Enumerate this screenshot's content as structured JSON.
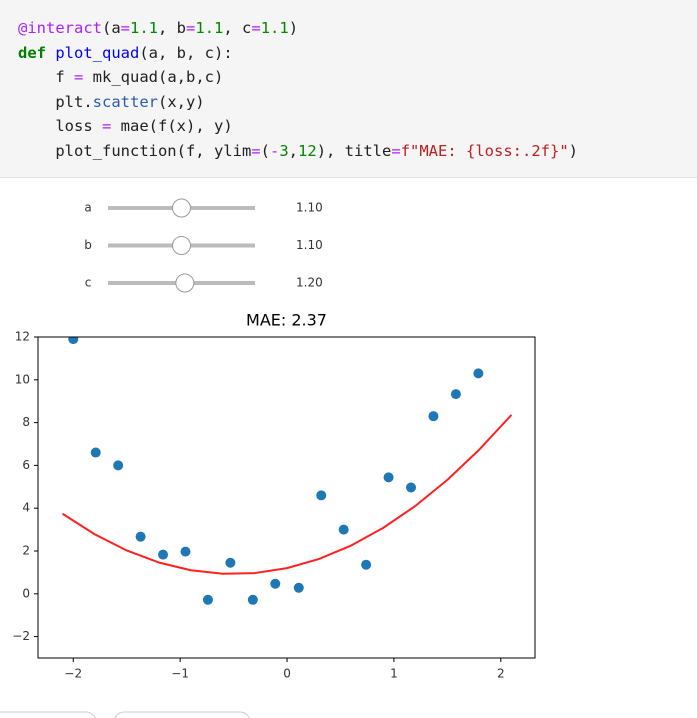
{
  "code": {
    "lines": [
      [
        {
          "t": "@interact",
          "c": "#aa22ff"
        },
        {
          "t": "(a",
          "c": "#212121"
        },
        {
          "t": "=",
          "c": "#aa22ff"
        },
        {
          "t": "1.1",
          "c": "#008800"
        },
        {
          "t": ", b",
          "c": "#212121"
        },
        {
          "t": "=",
          "c": "#aa22ff"
        },
        {
          "t": "1.1",
          "c": "#008800"
        },
        {
          "t": ", c",
          "c": "#212121"
        },
        {
          "t": "=",
          "c": "#aa22ff"
        },
        {
          "t": "1.1",
          "c": "#008800"
        },
        {
          "t": ")",
          "c": "#212121"
        }
      ],
      [
        {
          "t": "def",
          "c": "#008000",
          "weight": "bold"
        },
        {
          "t": " ",
          "c": "#212121"
        },
        {
          "t": "plot_quad",
          "c": "#0000ff"
        },
        {
          "t": "(a, b, c):",
          "c": "#212121"
        }
      ],
      [
        {
          "t": "    f ",
          "c": "#212121"
        },
        {
          "t": "=",
          "c": "#aa22ff"
        },
        {
          "t": " mk_quad(a,b,c)",
          "c": "#212121"
        }
      ],
      [
        {
          "t": "    plt.",
          "c": "#212121"
        },
        {
          "t": "scatter",
          "c": "#2a5db0"
        },
        {
          "t": "(x,y)",
          "c": "#212121"
        }
      ],
      [
        {
          "t": "    loss ",
          "c": "#212121"
        },
        {
          "t": "=",
          "c": "#aa22ff"
        },
        {
          "t": " mae(f(x), y)",
          "c": "#212121"
        }
      ],
      [
        {
          "t": "    plot_function(f, ylim",
          "c": "#212121"
        },
        {
          "t": "=",
          "c": "#aa22ff"
        },
        {
          "t": "(",
          "c": "#212121"
        },
        {
          "t": "-",
          "c": "#aa22ff"
        },
        {
          "t": "3",
          "c": "#008800"
        },
        {
          "t": ",",
          "c": "#212121"
        },
        {
          "t": "12",
          "c": "#008800"
        },
        {
          "t": "), title",
          "c": "#212121"
        },
        {
          "t": "=",
          "c": "#aa22ff"
        },
        {
          "t": "f\"MAE: {loss:.2f}\"",
          "c": "#ba2121"
        },
        {
          "t": ")",
          "c": "#212121"
        }
      ]
    ]
  },
  "widgets": [
    {
      "label": "a",
      "value": 1.1,
      "value_label": "1.10",
      "range": [
        -1.1,
        3.3
      ]
    },
    {
      "label": "b",
      "value": 1.1,
      "value_label": "1.10",
      "range": [
        -1.1,
        3.3
      ]
    },
    {
      "label": "c",
      "value": 1.2,
      "value_label": "1.20",
      "range": [
        -1.1,
        3.3
      ]
    }
  ],
  "chart_data": {
    "type": "scatter",
    "title": "MAE: 2.37",
    "xlim": [
      -2.33,
      2.32
    ],
    "ylim": [
      -3,
      12
    ],
    "xticks": [
      {
        "value": -2,
        "label": "−2"
      },
      {
        "value": -1,
        "label": "−1"
      },
      0,
      1,
      2
    ],
    "yticks": [
      {
        "value": -2,
        "label": "−2"
      },
      0,
      2,
      4,
      6,
      8,
      10,
      12
    ],
    "series": [
      {
        "type": "scatter",
        "color": "#1f77b4",
        "x": [
          -2.0,
          -1.79,
          -1.58,
          -1.37,
          -1.16,
          -0.95,
          -0.74,
          -0.53,
          -0.32,
          -0.11,
          0.11,
          0.32,
          0.53,
          0.74,
          0.95,
          1.16,
          1.37,
          1.58,
          1.79
        ],
        "values": [
          11.9,
          6.6,
          6.0,
          2.67,
          1.83,
          1.97,
          -0.28,
          1.45,
          -0.28,
          0.47,
          0.28,
          4.6,
          3.0,
          1.36,
          5.44,
          4.97,
          8.3,
          9.33,
          10.3
        ]
      },
      {
        "type": "line",
        "color": "#ff2020",
        "x": [
          -2.1,
          -1.8,
          -1.5,
          -1.2,
          -0.9,
          -0.6,
          -0.3,
          0,
          0.3,
          0.6,
          0.9,
          1.2,
          1.5,
          1.8,
          2.1
        ],
        "values": [
          3.741,
          2.784,
          2.025,
          1.464,
          1.101,
          0.936,
          0.969,
          1.2,
          1.629,
          2.256,
          3.081,
          4.104,
          5.325,
          6.744,
          8.361
        ]
      }
    ]
  }
}
